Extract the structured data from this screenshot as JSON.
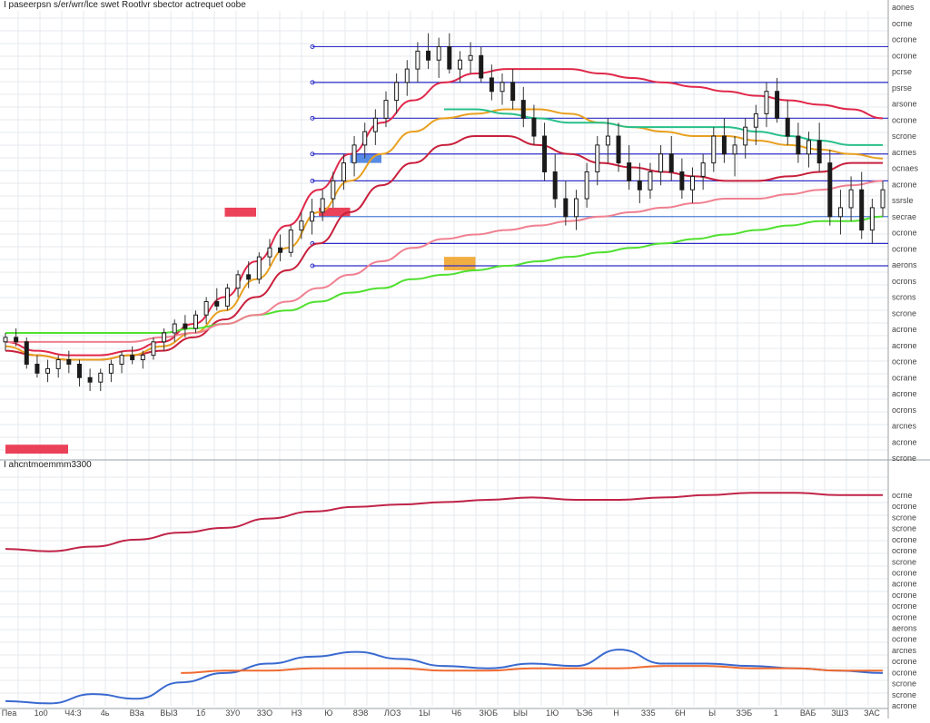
{
  "colors": {
    "background": "#ffffff",
    "grid": "#e6e9ee",
    "separator": "#9aa0a6",
    "candle_body": "#1a1a1a",
    "candle_wick": "#333333",
    "level_line": "#2f2fc8",
    "level_line_light": "#4f7fd6",
    "ma_red": "#e0284a",
    "ma_crimson": "#c8203c",
    "ma_orange": "#e8a020",
    "ma_teal": "#28c08a",
    "ma_green": "#50e030",
    "ma_pink": "#f08090",
    "ma_dark": "#5a1010",
    "zone_red": "#e8203c",
    "zone_blue": "#3a78e0",
    "zone_orange": "#f0a020",
    "zone_lightblue": "#cfe6f5",
    "ind_crimson": "#c02448",
    "ind_blue": "#3a6ad0",
    "ind_orange": "#f06a30"
  },
  "chart_data": [
    {
      "type": "candlestick",
      "title": "Ι paseerpsn s/er/wrr/lce swet Rootlvr sbector actrequet oobe",
      "grid": true,
      "legend": "none",
      "ylim": [
        0,
        100
      ],
      "x_tick_labels": [
        "Пea",
        "1о0",
        "Ч4:3",
        "4ь",
        "ВЗа",
        "ВЫЗ",
        "1б",
        "3У0",
        "3ЗО",
        "НЗ",
        "Ю",
        "8Э8",
        "ЛОЗ",
        "1Ы",
        "Ч6",
        "ЗЮБ",
        "ЫЫ",
        "1Ю",
        "ЪЭ6",
        "Н",
        "ЗЗ5",
        "6Н",
        "Ы",
        "ЗЭБ",
        "1",
        "ВАБ",
        "ЗШЗ",
        "ЗАС"
      ],
      "y_tick_labels": [
        "aones",
        "ocrne",
        "ocrone",
        "ocrone",
        "pcrse",
        "psrse",
        "arsone",
        "ocrone",
        "scrone",
        "acrnes",
        "ocnaes",
        "acrone",
        "ssrsle",
        "secrae",
        "ocrone",
        "ocrone",
        "aerons",
        "ocrons",
        "scrons",
        "scrone",
        "acrone",
        "acrone",
        "ocrone",
        "ocrane",
        "acrone",
        "ocrons",
        "arcnes",
        "acrone",
        "scrone"
      ],
      "ohlc": [
        [
          26,
          28,
          24,
          27
        ],
        [
          27,
          29,
          25,
          26
        ],
        [
          26,
          27,
          20,
          21
        ],
        [
          21,
          23,
          18,
          19
        ],
        [
          19,
          22,
          17,
          20
        ],
        [
          20,
          23,
          18,
          22
        ],
        [
          22,
          24,
          19,
          21
        ],
        [
          21,
          22,
          16,
          18
        ],
        [
          18,
          20,
          15,
          17
        ],
        [
          17,
          20,
          15,
          19
        ],
        [
          19,
          22,
          17,
          21
        ],
        [
          21,
          24,
          19,
          23
        ],
        [
          23,
          25,
          21,
          22
        ],
        [
          22,
          24,
          20,
          23
        ],
        [
          23,
          27,
          22,
          26
        ],
        [
          26,
          29,
          24,
          28
        ],
        [
          28,
          31,
          26,
          30
        ],
        [
          30,
          32,
          27,
          29
        ],
        [
          29,
          33,
          28,
          32
        ],
        [
          32,
          36,
          30,
          35
        ],
        [
          35,
          38,
          33,
          34
        ],
        [
          34,
          39,
          33,
          38
        ],
        [
          38,
          42,
          36,
          41
        ],
        [
          41,
          44,
          38,
          40
        ],
        [
          40,
          46,
          39,
          45
        ],
        [
          45,
          49,
          43,
          47
        ],
        [
          47,
          50,
          44,
          46
        ],
        [
          46,
          52,
          45,
          51
        ],
        [
          51,
          55,
          49,
          53
        ],
        [
          53,
          58,
          50,
          55
        ],
        [
          55,
          60,
          53,
          58
        ],
        [
          58,
          64,
          56,
          62
        ],
        [
          62,
          68,
          60,
          66
        ],
        [
          66,
          72,
          63,
          70
        ],
        [
          70,
          75,
          67,
          73
        ],
        [
          73,
          78,
          70,
          76
        ],
        [
          76,
          82,
          74,
          80
        ],
        [
          80,
          86,
          77,
          84
        ],
        [
          84,
          89,
          81,
          87
        ],
        [
          87,
          93,
          84,
          91
        ],
        [
          91,
          95,
          87,
          89
        ],
        [
          89,
          94,
          85,
          92
        ],
        [
          92,
          95,
          86,
          87
        ],
        [
          87,
          91,
          84,
          89
        ],
        [
          89,
          93,
          86,
          90
        ],
        [
          90,
          92,
          84,
          85
        ],
        [
          85,
          88,
          80,
          82
        ],
        [
          82,
          86,
          79,
          84
        ],
        [
          84,
          87,
          78,
          80
        ],
        [
          80,
          83,
          74,
          76
        ],
        [
          76,
          79,
          70,
          72
        ],
        [
          72,
          75,
          62,
          64
        ],
        [
          64,
          68,
          56,
          58
        ],
        [
          58,
          62,
          52,
          54
        ],
        [
          54,
          60,
          51,
          58
        ],
        [
          58,
          66,
          56,
          64
        ],
        [
          64,
          72,
          61,
          70
        ],
        [
          70,
          76,
          66,
          72
        ],
        [
          72,
          75,
          64,
          66
        ],
        [
          66,
          70,
          60,
          62
        ],
        [
          62,
          66,
          57,
          60
        ],
        [
          60,
          66,
          58,
          64
        ],
        [
          64,
          70,
          61,
          68
        ],
        [
          68,
          72,
          62,
          64
        ],
        [
          64,
          67,
          58,
          60
        ],
        [
          60,
          65,
          57,
          63
        ],
        [
          63,
          68,
          60,
          66
        ],
        [
          66,
          74,
          64,
          72
        ],
        [
          72,
          76,
          66,
          68
        ],
        [
          68,
          72,
          63,
          70
        ],
        [
          70,
          76,
          67,
          74
        ],
        [
          74,
          79,
          70,
          77
        ],
        [
          77,
          84,
          74,
          82
        ],
        [
          82,
          85,
          75,
          76
        ],
        [
          76,
          80,
          70,
          72
        ],
        [
          72,
          75,
          66,
          68
        ],
        [
          68,
          73,
          65,
          71
        ],
        [
          71,
          75,
          64,
          66
        ],
        [
          66,
          69,
          52,
          54
        ],
        [
          54,
          60,
          50,
          56
        ],
        [
          56,
          63,
          53,
          60
        ],
        [
          60,
          64,
          49,
          51
        ],
        [
          51,
          58,
          48,
          56
        ],
        [
          56,
          62,
          54,
          60
        ]
      ],
      "series": [
        {
          "color": "#e0284a",
          "values": [
            26,
            24,
            23,
            23,
            24,
            26,
            30,
            36,
            44,
            52,
            60,
            68,
            75,
            80,
            84,
            86,
            87,
            87,
            87,
            86,
            85,
            84,
            83,
            82,
            81,
            80,
            79,
            78,
            76
          ]
        },
        {
          "color": "#c8203c",
          "values": [
            24,
            23,
            22,
            22,
            23,
            24,
            27,
            31,
            36,
            42,
            48,
            55,
            61,
            66,
            70,
            72,
            72,
            70,
            68,
            66,
            65,
            64,
            63,
            62,
            62,
            63,
            64,
            66,
            66
          ]
        },
        {
          "color": "#e8a020",
          "values": [
            25,
            23,
            22,
            22,
            23,
            25,
            28,
            33,
            40,
            47,
            55,
            62,
            68,
            73,
            76,
            77,
            78,
            78,
            77,
            75,
            74,
            73,
            72,
            72,
            71,
            70,
            69,
            68,
            67
          ]
        },
        {
          "color": "#28c08a",
          "values": [
            null,
            null,
            null,
            null,
            null,
            null,
            null,
            null,
            null,
            null,
            null,
            null,
            null,
            null,
            78,
            78,
            77,
            76,
            75,
            75,
            74,
            74,
            74,
            74,
            73,
            72,
            71,
            70,
            70
          ]
        },
        {
          "color": "#50e030",
          "values": [
            28,
            28,
            28,
            28,
            28,
            28,
            29,
            30,
            32,
            33,
            35,
            37,
            38,
            40,
            41,
            42,
            43,
            44,
            45,
            46,
            47,
            48,
            49,
            50,
            51,
            52,
            53,
            53,
            54
          ]
        },
        {
          "color": "#f08090",
          "values": [
            26,
            26,
            26,
            26,
            26,
            27,
            28,
            30,
            32,
            35,
            38,
            41,
            44,
            47,
            49,
            50,
            51,
            52,
            53,
            54,
            55,
            56,
            57,
            58,
            58,
            59,
            60,
            61,
            62
          ]
        }
      ],
      "horizontal_levels": [
        92,
        84,
        76,
        68,
        62,
        54,
        48,
        43
      ],
      "zones": [
        {
          "color": "#e8203c",
          "x0": 0,
          "x1": 2,
          "y0": 1,
          "y1": 3
        },
        {
          "color": "#e8203c",
          "x0": 7,
          "x1": 8,
          "y0": 54,
          "y1": 56
        },
        {
          "color": "#e8203c",
          "x0": 10,
          "x1": 11,
          "y0": 54,
          "y1": 56
        },
        {
          "color": "#3a78e0",
          "x0": 11,
          "x1": 12,
          "y0": 66,
          "y1": 68
        },
        {
          "color": "#f0a020",
          "x0": 14,
          "x1": 15,
          "y0": 42,
          "y1": 45
        }
      ]
    },
    {
      "type": "line",
      "title": "Ι ahcntmoemmm3300",
      "grid": true,
      "legend": "none",
      "ylim": [
        0,
        100
      ],
      "y_tick_labels": [
        "ocrne",
        "ocrone",
        "scrone",
        "scrone",
        "ocrone",
        "ocrone",
        "scrone",
        "ocrone",
        "acrone",
        "ocrone",
        "ocrone",
        "ocrone",
        "aerons",
        "ocrone",
        "arcnes",
        "ocrone",
        "ocrone",
        "scrone",
        "scrone",
        "acrone"
      ],
      "series": [
        {
          "color": "#c02448",
          "x": [
            0,
            3,
            6,
            9,
            12,
            15,
            18,
            21,
            24,
            27,
            30,
            33,
            36,
            39,
            42,
            45,
            48,
            51,
            54,
            57,
            60
          ],
          "values": [
            67,
            66,
            68,
            71,
            74,
            76,
            80,
            83,
            85,
            86,
            87,
            88,
            89,
            88,
            88,
            89,
            90,
            91,
            91,
            90,
            90
          ]
        },
        {
          "color": "#3a6ad0",
          "x": [
            0,
            3,
            6,
            9,
            12,
            15,
            18,
            21,
            24,
            27,
            30,
            33,
            36,
            39,
            42,
            45,
            48,
            51,
            54,
            57,
            60
          ],
          "values": [
            2,
            1,
            5,
            3,
            10,
            14,
            18,
            21,
            23,
            20,
            17,
            16,
            18,
            17,
            24,
            18,
            18,
            17,
            16,
            15,
            14
          ]
        },
        {
          "color": "#f06a30",
          "x": [
            12,
            15,
            18,
            21,
            24,
            27,
            30,
            33,
            36,
            39,
            42,
            45,
            48,
            51,
            54,
            57,
            60
          ],
          "values": [
            14,
            15,
            15,
            16,
            16,
            16,
            15,
            15,
            16,
            16,
            16,
            17,
            17,
            16,
            16,
            15,
            15
          ]
        }
      ]
    }
  ]
}
